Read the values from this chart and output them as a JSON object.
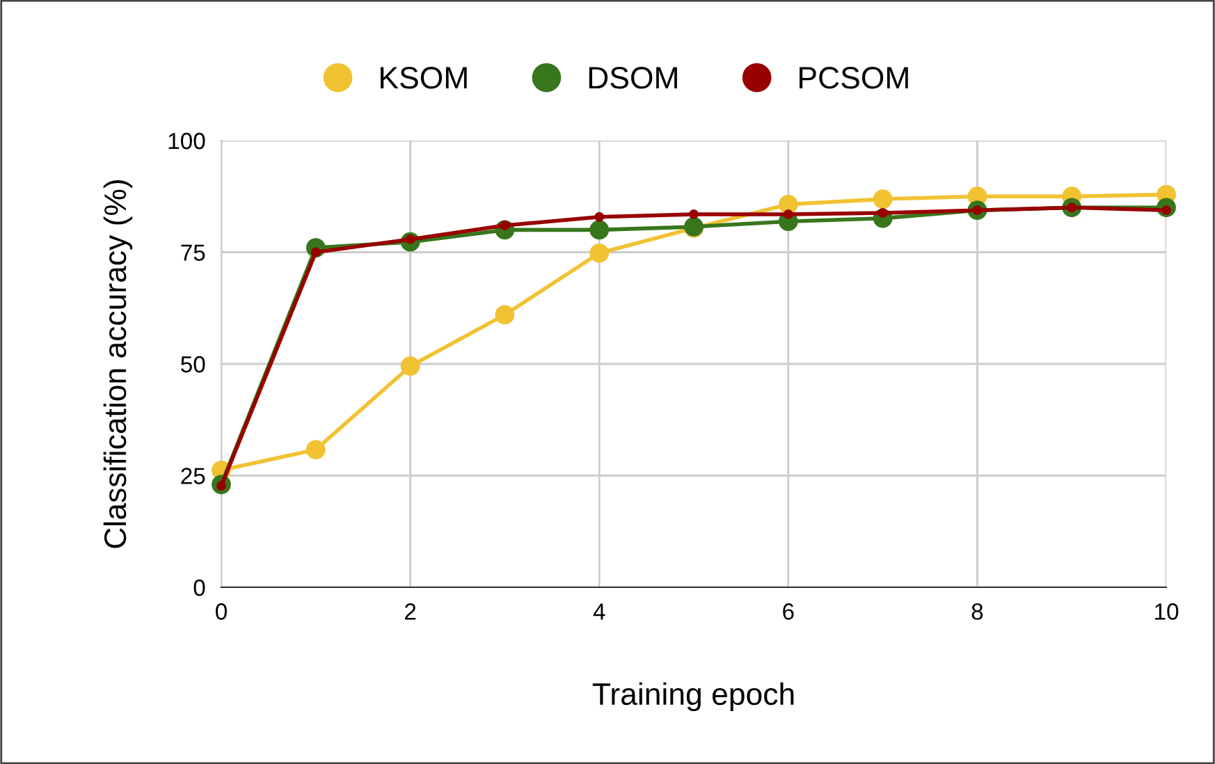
{
  "chart_data": {
    "type": "line",
    "xlabel": "Training epoch",
    "ylabel": "Classification accuracy (%)",
    "x": [
      0,
      1,
      2,
      3,
      4,
      5,
      6,
      7,
      8,
      9,
      10
    ],
    "series": [
      {
        "name": "KSOM",
        "color": "#f1c232",
        "values": [
          26.2,
          30.8,
          49.5,
          61,
          74.8,
          80.4,
          85.7,
          86.9,
          87.5,
          87.5,
          87.9
        ]
      },
      {
        "name": "DSOM",
        "color": "#38761d",
        "values": [
          23,
          76,
          77.3,
          80,
          80,
          80.7,
          81.9,
          82.6,
          84.4,
          85,
          85
        ]
      },
      {
        "name": "PCSOM",
        "color": "#990000",
        "values": [
          22.7,
          75,
          77.9,
          81,
          82.9,
          83.5,
          83.5,
          83.8,
          84.4,
          85,
          84.4
        ]
      }
    ],
    "xlim": [
      0,
      10
    ],
    "xticks": [
      0,
      2,
      4,
      6,
      8,
      10
    ],
    "ylim": [
      0,
      100
    ],
    "yticks": [
      0,
      25,
      50,
      75,
      100
    ],
    "grid": true,
    "legend": "top",
    "marker": "circle",
    "line_style": "solid"
  }
}
